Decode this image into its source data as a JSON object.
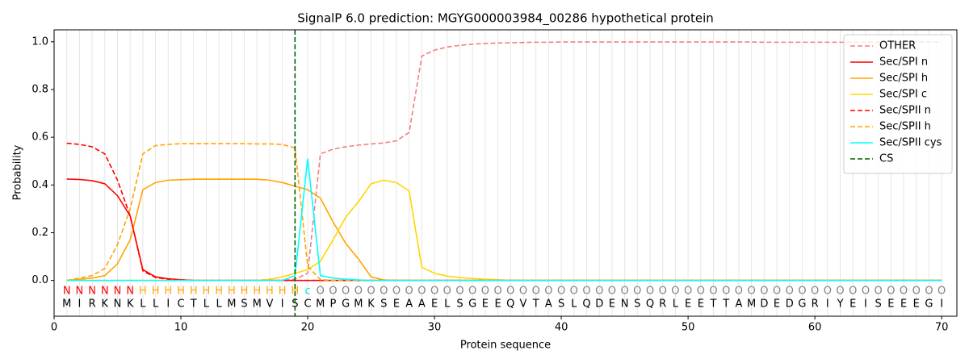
{
  "chart_data": {
    "type": "line",
    "title": "SignalP 6.0 prediction: MGYG000003984_00286 hypothetical protein",
    "xlabel": "Protein sequence",
    "ylabel": "Probability",
    "xlim": [
      0,
      71.2
    ],
    "ylim": [
      -0.15,
      1.05
    ],
    "xticks": [
      0,
      10,
      20,
      30,
      40,
      50,
      60,
      70
    ],
    "yticks": [
      {
        "value": 0,
        "label": "0.0"
      },
      0.2,
      0.4,
      0.6,
      0.8,
      {
        "value": 1,
        "label": "1.0"
      }
    ],
    "grid": true,
    "legend": "upper right",
    "x": [
      1,
      2,
      3,
      4,
      5,
      6,
      7,
      8,
      9,
      10,
      11,
      12,
      13,
      14,
      15,
      16,
      17,
      18,
      19,
      20,
      21,
      22,
      23,
      24,
      25,
      26,
      27,
      28,
      29,
      30,
      31,
      32,
      33,
      34,
      35,
      36,
      37,
      38,
      39,
      40,
      41,
      42,
      43,
      44,
      45,
      46,
      47,
      48,
      49,
      50,
      51,
      52,
      53,
      54,
      55,
      56,
      57,
      58,
      59,
      60,
      61,
      62,
      63,
      64,
      65,
      66,
      67,
      68,
      69,
      70
    ],
    "sequence": [
      "M",
      "I",
      "R",
      "K",
      "N",
      "K",
      "L",
      "L",
      "I",
      "C",
      "T",
      "L",
      "L",
      "M",
      "S",
      "M",
      "V",
      "I",
      "S",
      "C",
      "M",
      "P",
      "G",
      "M",
      "K",
      "S",
      "E",
      "A",
      "A",
      "E",
      "L",
      "S",
      "G",
      "E",
      "E",
      "Q",
      "V",
      "T",
      "A",
      "S",
      "L",
      "Q",
      "D",
      "E",
      "N",
      "S",
      "Q",
      "R",
      "L",
      "E",
      "E",
      "T",
      "T",
      "A",
      "M",
      "D",
      "E",
      "D",
      "G",
      "R",
      "I",
      "Y",
      "E",
      "I",
      "S",
      "E",
      "E",
      "E",
      "G",
      "I"
    ],
    "regions": [
      "N",
      "N",
      "N",
      "N",
      "N",
      "N",
      "H",
      "H",
      "H",
      "H",
      "H",
      "H",
      "H",
      "H",
      "H",
      "H",
      "H",
      "H",
      "H",
      "c",
      "O",
      "O",
      "O",
      "O",
      "O",
      "O",
      "O",
      "O",
      "O",
      "O",
      "O",
      "O",
      "O",
      "O",
      "O",
      "O",
      "O",
      "O",
      "O",
      "O",
      "O",
      "O",
      "O",
      "O",
      "O",
      "O",
      "O",
      "O",
      "O",
      "O",
      "O",
      "O",
      "O",
      "O",
      "O",
      "O",
      "O",
      "O",
      "O",
      "O",
      "O",
      "O",
      "O",
      "O",
      "O",
      "O",
      "O",
      "O",
      "O",
      "O"
    ],
    "region_colors": {
      "N": "#ff0000",
      "H": "#ffa500",
      "c": "#00e5ee",
      "O": "#808080"
    },
    "series": [
      {
        "name": "OTHER",
        "color": "#f08080",
        "linestyle": "dashed",
        "values": [
          0,
          0,
          0,
          0,
          0,
          0,
          0,
          0,
          0,
          0,
          0,
          0,
          0,
          0,
          0,
          0,
          0,
          0,
          0.005,
          0.03,
          0.53,
          0.55,
          0.56,
          0.567,
          0.572,
          0.576,
          0.585,
          0.62,
          0.94,
          0.965,
          0.978,
          0.985,
          0.99,
          0.993,
          0.995,
          0.996,
          0.997,
          0.998,
          0.998,
          0.999,
          0.999,
          0.999,
          0.999,
          0.999,
          0.999,
          0.999,
          0.999,
          0.999,
          0.999,
          0.999,
          0.999,
          0.999,
          0.999,
          0.999,
          0.999,
          0.998,
          0.998,
          0.998,
          0.998,
          0.998,
          0.998,
          0.998,
          0.998,
          0.998,
          0.998,
          0.998,
          0.998,
          0.999,
          0.999,
          0.999
        ]
      },
      {
        "name": "Sec/SPI n",
        "color": "#ff0000",
        "linestyle": "solid",
        "values": [
          0.425,
          0.423,
          0.418,
          0.405,
          0.355,
          0.27,
          0.045,
          0.015,
          0.007,
          0.003,
          0,
          0,
          0,
          0,
          0,
          0,
          0,
          0,
          0,
          0,
          0,
          0,
          0,
          0,
          0,
          0,
          0,
          0,
          0,
          0,
          0,
          0,
          0,
          0,
          0,
          0,
          0,
          0,
          0,
          0,
          0,
          0,
          0,
          0,
          0,
          0,
          0,
          0,
          0,
          0,
          0,
          0,
          0,
          0,
          0,
          0,
          0,
          0,
          0,
          0,
          0,
          0,
          0,
          0,
          0,
          0,
          0,
          0,
          0,
          0
        ]
      },
      {
        "name": "Sec/SPI h",
        "color": "#ffa500",
        "linestyle": "solid",
        "values": [
          0,
          0.005,
          0.01,
          0.02,
          0.07,
          0.17,
          0.38,
          0.41,
          0.42,
          0.422,
          0.424,
          0.424,
          0.424,
          0.424,
          0.424,
          0.424,
          0.42,
          0.41,
          0.395,
          0.38,
          0.345,
          0.245,
          0.155,
          0.09,
          0.015,
          0.002,
          0,
          0,
          0,
          0,
          0,
          0,
          0,
          0,
          0,
          0,
          0,
          0,
          0,
          0,
          0,
          0,
          0,
          0,
          0,
          0,
          0,
          0,
          0,
          0,
          0,
          0,
          0,
          0,
          0,
          0,
          0,
          0,
          0,
          0,
          0,
          0,
          0,
          0,
          0,
          0,
          0,
          0,
          0,
          0
        ]
      },
      {
        "name": "Sec/SPI c",
        "color": "#ffd700",
        "linestyle": "solid",
        "values": [
          0,
          0,
          0,
          0,
          0,
          0,
          0,
          0,
          0,
          0,
          0,
          0,
          0,
          0,
          0,
          0,
          0.005,
          0.015,
          0.03,
          0.045,
          0.08,
          0.17,
          0.265,
          0.33,
          0.405,
          0.42,
          0.41,
          0.375,
          0.055,
          0.03,
          0.018,
          0.012,
          0.008,
          0.005,
          0.003,
          0,
          0,
          0,
          0,
          0,
          0,
          0,
          0,
          0,
          0,
          0,
          0,
          0,
          0,
          0,
          0,
          0,
          0,
          0,
          0,
          0,
          0,
          0,
          0,
          0,
          0,
          0,
          0,
          0,
          0,
          0,
          0,
          0,
          0,
          0
        ]
      },
      {
        "name": "Sec/SPII n",
        "color": "#ff0000",
        "linestyle": "dashed",
        "values": [
          0.575,
          0.57,
          0.56,
          0.53,
          0.42,
          0.27,
          0.04,
          0.012,
          0.005,
          0.002,
          0,
          0,
          0,
          0,
          0,
          0,
          0,
          0,
          0,
          0,
          0,
          0,
          0,
          0,
          0,
          0,
          0,
          0,
          0,
          0,
          0,
          0,
          0,
          0,
          0,
          0,
          0,
          0,
          0,
          0,
          0,
          0,
          0,
          0,
          0,
          0,
          0,
          0,
          0,
          0,
          0,
          0,
          0,
          0,
          0,
          0,
          0,
          0,
          0,
          0,
          0,
          0,
          0,
          0,
          0,
          0,
          0,
          0,
          0,
          0
        ]
      },
      {
        "name": "Sec/SPII h",
        "color": "#ffa500",
        "linestyle": "dashed",
        "values": [
          0,
          0.01,
          0.02,
          0.05,
          0.15,
          0.3,
          0.53,
          0.565,
          0.57,
          0.573,
          0.573,
          0.573,
          0.573,
          0.573,
          0.573,
          0.572,
          0.572,
          0.57,
          0.555,
          0.06,
          0.003,
          0,
          0,
          0,
          0,
          0,
          0,
          0,
          0,
          0,
          0,
          0,
          0,
          0,
          0,
          0,
          0,
          0,
          0,
          0,
          0,
          0,
          0,
          0,
          0,
          0,
          0,
          0,
          0,
          0,
          0,
          0,
          0,
          0,
          0,
          0,
          0,
          0,
          0,
          0,
          0,
          0,
          0,
          0,
          0,
          0,
          0,
          0,
          0,
          0
        ]
      },
      {
        "name": "Sec/SPII cys",
        "color": "#00ffff",
        "linestyle": "solid",
        "values": [
          0,
          0,
          0,
          0,
          0,
          0,
          0,
          0,
          0,
          0,
          0,
          0,
          0,
          0,
          0,
          0,
          0,
          0,
          0.02,
          0.51,
          0.02,
          0.01,
          0.005,
          0.002,
          0,
          0,
          0,
          0,
          0,
          0,
          0,
          0,
          0,
          0,
          0,
          0,
          0,
          0,
          0,
          0,
          0,
          0,
          0,
          0,
          0,
          0,
          0,
          0,
          0,
          0,
          0,
          0,
          0,
          0,
          0,
          0,
          0,
          0,
          0,
          0,
          0,
          0,
          0,
          0,
          0,
          0,
          0,
          0,
          0,
          0
        ]
      }
    ],
    "cs": {
      "name": "CS",
      "x": 19,
      "color": "#006400"
    }
  }
}
